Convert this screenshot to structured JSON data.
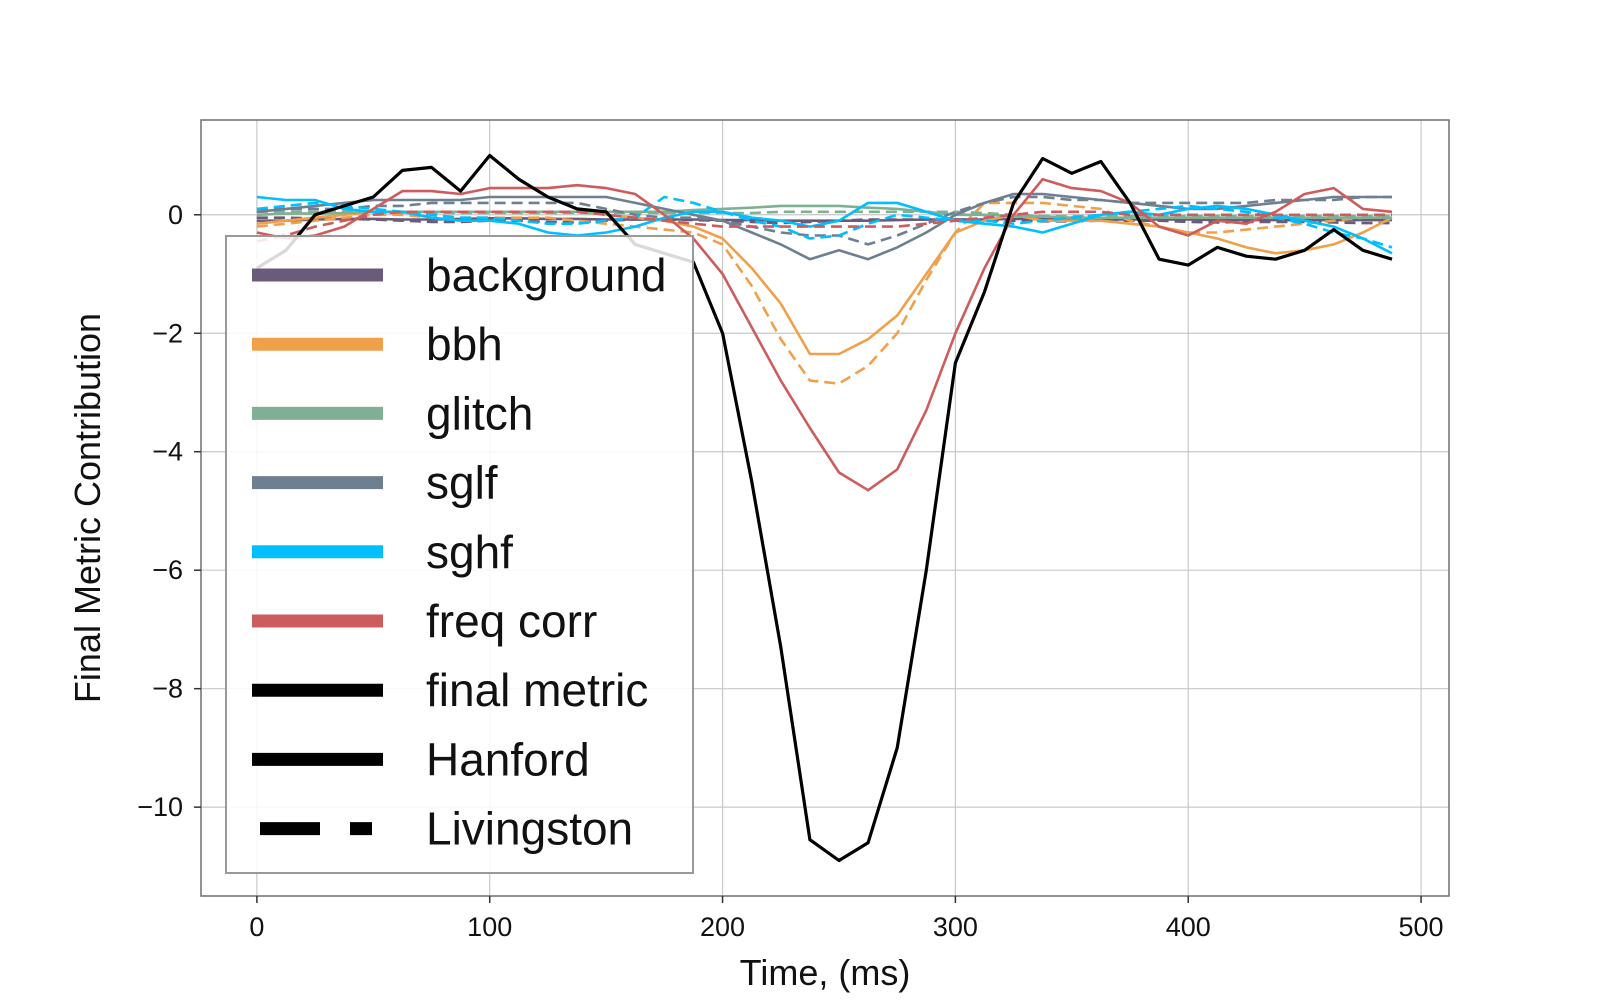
{
  "chart_data": {
    "type": "line",
    "xlabel": "Time, (ms)",
    "ylabel": "Final Metric Contribution",
    "xlim": [
      -24,
      512
    ],
    "ylim": [
      -11.5,
      1.6
    ],
    "xticks": [
      0,
      100,
      200,
      300,
      400,
      500
    ],
    "yticks": [
      -10,
      -8,
      -6,
      -4,
      -2,
      0
    ],
    "xtick_labels": [
      "0",
      "100",
      "200",
      "300",
      "400",
      "500"
    ],
    "ytick_labels": [
      "−10",
      "−8",
      "−6",
      "−4",
      "−2",
      "0"
    ],
    "grid": true,
    "legend_position": "left",
    "x": [
      0,
      12.5,
      25,
      37.5,
      50,
      62.5,
      75,
      87.5,
      100,
      112.5,
      125,
      137.5,
      150,
      162.5,
      175,
      187.5,
      200,
      212.5,
      225,
      237.5,
      250,
      262.5,
      275,
      287.5,
      300,
      312.5,
      325,
      337.5,
      350,
      362.5,
      375,
      387.5,
      400,
      412.5,
      425,
      437.5,
      450,
      462.5,
      475,
      487.5
    ],
    "legend": [
      {
        "label": "background",
        "color": "#6b5b7b",
        "style": "solid"
      },
      {
        "label": "bbh",
        "color": "#f0a04b",
        "style": "solid"
      },
      {
        "label": "glitch",
        "color": "#7fb093",
        "style": "solid"
      },
      {
        "label": "sglf",
        "color": "#6e7f91",
        "style": "solid"
      },
      {
        "label": "sghf",
        "color": "#00bfff",
        "style": "solid"
      },
      {
        "label": "freq corr",
        "color": "#cd5c5c",
        "style": "solid"
      },
      {
        "label": "final metric",
        "color": "#000000",
        "style": "solid"
      },
      {
        "label": "Hanford",
        "color": "#000000",
        "style": "solid"
      },
      {
        "label": "Livingston",
        "color": "#000000",
        "style": "dashed"
      }
    ],
    "series": [
      {
        "detector": "Hanford",
        "class": "background",
        "color": "#6b5b7b",
        "style": "solid",
        "values": [
          -0.1,
          -0.1,
          -0.08,
          -0.07,
          -0.07,
          -0.08,
          -0.08,
          -0.07,
          -0.06,
          -0.06,
          -0.07,
          -0.07,
          -0.08,
          -0.08,
          -0.08,
          -0.08,
          -0.09,
          -0.09,
          -0.1,
          -0.1,
          -0.1,
          -0.1,
          -0.09,
          -0.08,
          -0.08,
          -0.08,
          -0.07,
          -0.07,
          -0.07,
          -0.08,
          -0.08,
          -0.08,
          -0.08,
          -0.09,
          -0.09,
          -0.09,
          -0.09,
          -0.09,
          -0.09,
          -0.09
        ]
      },
      {
        "detector": "Livingston",
        "class": "background",
        "color": "#6b5b7b",
        "style": "dashed",
        "values": [
          -0.05,
          -0.05,
          -0.06,
          -0.07,
          -0.08,
          -0.1,
          -0.12,
          -0.12,
          -0.1,
          -0.1,
          -0.12,
          -0.13,
          -0.1,
          -0.08,
          -0.08,
          -0.09,
          -0.1,
          -0.12,
          -0.14,
          -0.12,
          -0.1,
          -0.08,
          -0.08,
          -0.08,
          -0.08,
          -0.09,
          -0.1,
          -0.11,
          -0.11,
          -0.1,
          -0.1,
          -0.1,
          -0.12,
          -0.13,
          -0.12,
          -0.12,
          -0.12,
          -0.13,
          -0.14,
          -0.14
        ]
      },
      {
        "detector": "Hanford",
        "class": "bbh",
        "color": "#f0a04b",
        "style": "solid",
        "values": [
          -0.15,
          -0.1,
          -0.05,
          0.0,
          0.05,
          0.05,
          0.05,
          0.05,
          0.05,
          0.05,
          0.05,
          0.05,
          0.0,
          -0.05,
          -0.1,
          -0.2,
          -0.4,
          -0.9,
          -1.5,
          -2.35,
          -2.35,
          -2.1,
          -1.7,
          -1.0,
          -0.3,
          -0.1,
          0.0,
          -0.1,
          -0.1,
          -0.1,
          -0.15,
          -0.2,
          -0.3,
          -0.4,
          -0.55,
          -0.65,
          -0.6,
          -0.5,
          -0.3,
          -0.05
        ]
      },
      {
        "detector": "Livingston",
        "class": "bbh",
        "color": "#f0a04b",
        "style": "dashed",
        "values": [
          -0.2,
          -0.15,
          -0.1,
          -0.05,
          0.0,
          0.0,
          -0.05,
          -0.05,
          -0.05,
          -0.05,
          -0.05,
          -0.1,
          -0.15,
          -0.2,
          -0.25,
          -0.3,
          -0.5,
          -1.2,
          -2.1,
          -2.8,
          -2.85,
          -2.55,
          -2.0,
          -1.1,
          -0.3,
          0.2,
          0.2,
          0.2,
          0.15,
          0.1,
          -0.1,
          -0.2,
          -0.3,
          -0.3,
          -0.25,
          -0.2,
          -0.15,
          -0.1,
          -0.05,
          0.0
        ]
      },
      {
        "detector": "Hanford",
        "class": "glitch",
        "color": "#7fb093",
        "style": "solid",
        "values": [
          0.0,
          0.02,
          0.02,
          0.03,
          0.05,
          0.05,
          0.05,
          0.05,
          0.05,
          0.05,
          0.05,
          0.05,
          0.05,
          0.05,
          0.05,
          0.08,
          0.1,
          0.12,
          0.15,
          0.15,
          0.15,
          0.12,
          0.1,
          0.05,
          0.0,
          0.0,
          -0.02,
          -0.03,
          -0.05,
          -0.05,
          -0.05,
          -0.05,
          -0.05,
          -0.05,
          -0.05,
          -0.05,
          -0.05,
          -0.05,
          -0.05,
          -0.05
        ]
      },
      {
        "detector": "Livingston",
        "class": "glitch",
        "color": "#7fb093",
        "style": "dashed",
        "values": [
          0.05,
          0.05,
          0.05,
          0.05,
          0.05,
          0.03,
          0.03,
          0.03,
          0.03,
          0.03,
          0.03,
          0.03,
          0.03,
          0.03,
          0.03,
          0.03,
          0.03,
          0.03,
          0.05,
          0.05,
          0.05,
          0.05,
          0.05,
          0.05,
          0.05,
          0.03,
          0.0,
          -0.02,
          -0.02,
          -0.02,
          -0.02,
          -0.02,
          -0.02,
          -0.02,
          -0.02,
          -0.02,
          -0.02,
          -0.02,
          -0.02,
          -0.02
        ]
      },
      {
        "detector": "Hanford",
        "class": "sglf",
        "color": "#6e7f91",
        "style": "solid",
        "values": [
          0.05,
          0.1,
          0.15,
          0.2,
          0.25,
          0.25,
          0.25,
          0.25,
          0.3,
          0.3,
          0.3,
          0.3,
          0.3,
          0.2,
          0.1,
          0.0,
          -0.1,
          -0.3,
          -0.5,
          -0.75,
          -0.6,
          -0.75,
          -0.55,
          -0.3,
          0.0,
          0.2,
          0.35,
          0.35,
          0.3,
          0.25,
          0.2,
          0.15,
          0.1,
          0.1,
          0.15,
          0.2,
          0.25,
          0.3,
          0.3,
          0.3
        ]
      },
      {
        "detector": "Livingston",
        "class": "sglf",
        "color": "#6e7f91",
        "style": "dashed",
        "values": [
          0.1,
          0.1,
          0.1,
          0.1,
          0.15,
          0.15,
          0.2,
          0.2,
          0.2,
          0.2,
          0.2,
          0.2,
          0.1,
          0.0,
          -0.05,
          -0.05,
          -0.1,
          -0.2,
          -0.3,
          -0.35,
          -0.35,
          -0.5,
          -0.35,
          -0.15,
          0.05,
          0.2,
          0.3,
          0.3,
          0.25,
          0.25,
          0.2,
          0.2,
          0.2,
          0.2,
          0.2,
          0.25,
          0.25,
          0.25,
          0.3,
          0.3
        ]
      },
      {
        "detector": "Hanford",
        "class": "sghf",
        "color": "#00bfff",
        "style": "solid",
        "values": [
          0.3,
          0.25,
          0.25,
          0.1,
          0.05,
          0.05,
          -0.05,
          -0.1,
          -0.1,
          -0.15,
          -0.3,
          -0.35,
          -0.3,
          -0.2,
          -0.05,
          0.05,
          0.05,
          -0.05,
          -0.1,
          -0.2,
          -0.1,
          0.2,
          0.2,
          0.05,
          -0.1,
          -0.15,
          -0.2,
          -0.3,
          -0.15,
          0.0,
          0.05,
          0.0,
          0.1,
          0.15,
          0.1,
          0.0,
          -0.1,
          -0.2,
          -0.4,
          -0.65
        ]
      },
      {
        "detector": "Livingston",
        "class": "sghf",
        "color": "#00bfff",
        "style": "dashed",
        "values": [
          0.1,
          0.15,
          0.2,
          0.15,
          0.1,
          0.05,
          0.0,
          -0.05,
          -0.05,
          -0.1,
          -0.15,
          -0.15,
          -0.1,
          -0.05,
          0.3,
          0.2,
          0.05,
          -0.1,
          -0.2,
          -0.4,
          -0.35,
          -0.15,
          0.0,
          -0.05,
          -0.1,
          -0.1,
          -0.15,
          -0.1,
          -0.05,
          0.0,
          0.05,
          0.1,
          0.15,
          0.1,
          0.05,
          -0.05,
          -0.15,
          -0.3,
          -0.4,
          -0.55
        ]
      },
      {
        "detector": "Hanford",
        "class": "freq corr",
        "color": "#cd5c5c",
        "style": "solid",
        "values": [
          -0.3,
          -0.4,
          -0.35,
          -0.2,
          0.1,
          0.4,
          0.4,
          0.35,
          0.45,
          0.45,
          0.45,
          0.5,
          0.45,
          0.35,
          0.0,
          -0.4,
          -1.0,
          -1.9,
          -2.8,
          -3.6,
          -4.35,
          -4.65,
          -4.3,
          -3.3,
          -2.0,
          -0.9,
          0.0,
          0.6,
          0.45,
          0.4,
          0.2,
          -0.2,
          -0.35,
          -0.1,
          -0.15,
          0.05,
          0.35,
          0.45,
          0.1,
          0.05
        ]
      },
      {
        "detector": "Livingston",
        "class": "freq corr",
        "color": "#cd5c5c",
        "style": "dashed",
        "values": [
          -0.45,
          -0.35,
          -0.2,
          -0.1,
          0.0,
          0.05,
          0.05,
          0.05,
          0.05,
          0.05,
          0.05,
          0.05,
          0.0,
          -0.05,
          -0.1,
          -0.15,
          -0.2,
          -0.2,
          -0.2,
          -0.2,
          -0.2,
          -0.2,
          -0.2,
          -0.15,
          -0.1,
          -0.05,
          0.0,
          0.05,
          0.05,
          0.05,
          0.0,
          0.0,
          0.0,
          0.0,
          0.0,
          0.0,
          0.0,
          0.0,
          0.0,
          0.0
        ]
      },
      {
        "detector": "Hanford",
        "class": "final metric",
        "color": "#000000",
        "style": "solid",
        "values": [
          -0.9,
          -0.6,
          0.0,
          0.15,
          0.3,
          0.75,
          0.8,
          0.4,
          1.0,
          0.6,
          0.3,
          0.1,
          0.05,
          -0.5,
          -0.65,
          -0.8,
          -2.0,
          -4.5,
          -7.3,
          -10.55,
          -10.9,
          -10.6,
          -9.0,
          -6.0,
          -2.5,
          -1.3,
          0.2,
          0.95,
          0.7,
          0.9,
          0.2,
          -0.75,
          -0.85,
          -0.55,
          -0.7,
          -0.75,
          -0.6,
          -0.25,
          -0.6,
          -0.75
        ]
      }
    ]
  }
}
